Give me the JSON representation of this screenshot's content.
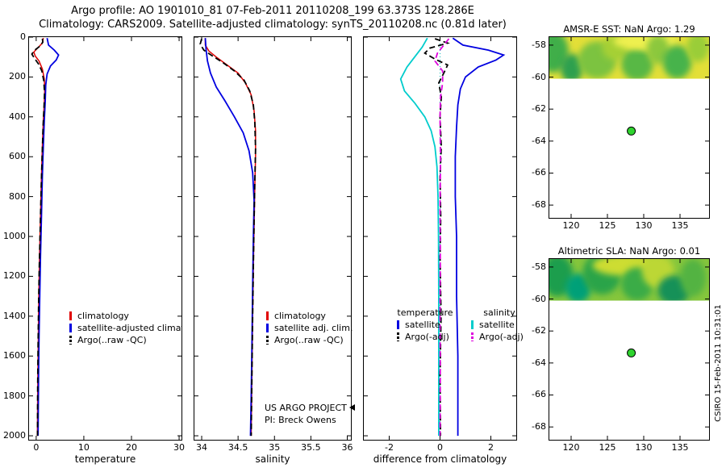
{
  "header": {
    "title_line1": "Argo profile: AO 1901010_81 07-Feb-2011 20110208_199 63.373S 128.286E",
    "title_line2": "Climatology: CARS2009. Satellite-adjusted climatology: synTS_20110208.nc (0.81d later)"
  },
  "annotations": {
    "project_line1": "US ARGO PROJECT",
    "project_line2": "PI: Breck Owens",
    "watermark": "CSIRO 15-Feb-2011 10:31:01"
  },
  "colors": {
    "climatology": "#e00000",
    "satellite_temperature": "#0000e0",
    "argo_raw": "#000000",
    "argo_adjusted_temperature": "#000000",
    "satellite_salinity": "#00cccc",
    "argo_adjusted_salinity": "#dd00dd",
    "marker_green": "#2fd42f"
  },
  "legends": {
    "panel1": [
      "climatology",
      "satellite-adjusted climatology",
      "Argo(..raw -QC)"
    ],
    "panel2": [
      "climatology",
      "satellite adj. clim.",
      "Argo(..raw -QC)"
    ],
    "panel3": {
      "col1_header": "temperature",
      "col2_header": "salinity",
      "col1": [
        "satellite",
        "Argo(-adj)"
      ],
      "col2": [
        "satellite",
        "Argo(-adj)"
      ]
    }
  },
  "chart_data": [
    {
      "type": "line",
      "xlabel": "temperature",
      "xlim": [
        -1.5,
        30.5
      ],
      "ylim": [
        0,
        2020
      ],
      "xticks": [
        0,
        10,
        20,
        30
      ],
      "yticks": [
        0,
        200,
        400,
        600,
        800,
        1000,
        1200,
        1400,
        1600,
        1800,
        2000
      ],
      "ytick_labels": true,
      "series": [
        {
          "name": "climatology",
          "color": "#e00000",
          "width": 1.5,
          "points": [
            [
              1.5,
              5
            ],
            [
              1.3,
              30
            ],
            [
              0.3,
              55
            ],
            [
              -0.5,
              75
            ],
            [
              -0.2,
              95
            ],
            [
              0.6,
              120
            ],
            [
              1.3,
              160
            ],
            [
              1.7,
              210
            ],
            [
              1.8,
              260
            ],
            [
              1.7,
              330
            ],
            [
              1.5,
              420
            ],
            [
              1.3,
              550
            ],
            [
              1.1,
              700
            ],
            [
              0.9,
              900
            ],
            [
              0.7,
              1100
            ],
            [
              0.55,
              1300
            ],
            [
              0.45,
              1500
            ],
            [
              0.35,
              1700
            ],
            [
              0.3,
              1850
            ],
            [
              0.25,
              2000
            ]
          ]
        },
        {
          "name": "satellite-adjusted climatology",
          "color": "#0000e0",
          "width": 1.8,
          "points": [
            [
              2.3,
              5
            ],
            [
              2.6,
              40
            ],
            [
              3.8,
              65
            ],
            [
              4.7,
              90
            ],
            [
              4.2,
              115
            ],
            [
              3.0,
              145
            ],
            [
              2.3,
              185
            ],
            [
              2.0,
              240
            ],
            [
              1.9,
              320
            ],
            [
              1.7,
              420
            ],
            [
              1.5,
              550
            ],
            [
              1.3,
              700
            ],
            [
              1.1,
              900
            ],
            [
              0.9,
              1100
            ],
            [
              0.75,
              1300
            ],
            [
              0.6,
              1500
            ],
            [
              0.5,
              1700
            ],
            [
              0.45,
              1850
            ],
            [
              0.4,
              2000
            ]
          ]
        },
        {
          "name": "Argo(..raw -QC)",
          "color": "#000000",
          "width": 1.8,
          "dash": "7,4",
          "points": [
            [
              1.3,
              8
            ],
            [
              1.4,
              25
            ],
            [
              0.8,
              45
            ],
            [
              -0.3,
              65
            ],
            [
              -0.9,
              85
            ],
            [
              -0.4,
              105
            ],
            [
              0.5,
              135
            ],
            [
              1.2,
              170
            ],
            [
              1.6,
              220
            ],
            [
              1.75,
              280
            ],
            [
              1.65,
              350
            ],
            [
              1.45,
              450
            ],
            [
              1.25,
              600
            ],
            [
              1.05,
              750
            ],
            [
              0.85,
              950
            ],
            [
              0.65,
              1150
            ],
            [
              0.5,
              1350
            ],
            [
              0.4,
              1550
            ],
            [
              0.32,
              1750
            ],
            [
              0.27,
              2000
            ]
          ]
        }
      ]
    },
    {
      "type": "line",
      "xlabel": "salinity",
      "xlim": [
        33.9,
        36.05
      ],
      "ylim": [
        0,
        2020
      ],
      "xticks": [
        34,
        34.5,
        35,
        35.5,
        36
      ],
      "yticks": [
        0,
        200,
        400,
        600,
        800,
        1000,
        1200,
        1400,
        1600,
        1800,
        2000
      ],
      "ytick_labels": false,
      "series": [
        {
          "name": "climatology",
          "color": "#e00000",
          "width": 1.5,
          "points": [
            [
              34.05,
              5
            ],
            [
              34.05,
              40
            ],
            [
              34.1,
              70
            ],
            [
              34.2,
              100
            ],
            [
              34.35,
              140
            ],
            [
              34.5,
              180
            ],
            [
              34.6,
              230
            ],
            [
              34.68,
              290
            ],
            [
              34.72,
              370
            ],
            [
              34.74,
              470
            ],
            [
              34.74,
              600
            ],
            [
              34.73,
              750
            ],
            [
              34.72,
              950
            ],
            [
              34.71,
              1150
            ],
            [
              34.7,
              1400
            ],
            [
              34.69,
              1700
            ],
            [
              34.68,
              2000
            ]
          ]
        },
        {
          "name": "satellite adj. clim.",
          "color": "#0000e0",
          "width": 1.8,
          "points": [
            [
              34.05,
              5
            ],
            [
              34.06,
              60
            ],
            [
              34.08,
              120
            ],
            [
              34.12,
              180
            ],
            [
              34.2,
              250
            ],
            [
              34.32,
              320
            ],
            [
              34.45,
              400
            ],
            [
              34.57,
              480
            ],
            [
              34.65,
              570
            ],
            [
              34.7,
              680
            ],
            [
              34.72,
              820
            ],
            [
              34.71,
              1000
            ],
            [
              34.7,
              1250
            ],
            [
              34.69,
              1550
            ],
            [
              34.68,
              1800
            ],
            [
              34.67,
              2000
            ]
          ]
        },
        {
          "name": "Argo(..raw -QC)",
          "color": "#000000",
          "width": 1.8,
          "dash": "7,4",
          "points": [
            [
              34.0,
              8
            ],
            [
              33.98,
              35
            ],
            [
              34.03,
              65
            ],
            [
              34.15,
              95
            ],
            [
              34.3,
              130
            ],
            [
              34.45,
              170
            ],
            [
              34.58,
              215
            ],
            [
              34.66,
              270
            ],
            [
              34.71,
              340
            ],
            [
              34.73,
              430
            ],
            [
              34.74,
              560
            ],
            [
              34.73,
              720
            ],
            [
              34.72,
              920
            ],
            [
              34.71,
              1150
            ],
            [
              34.7,
              1400
            ],
            [
              34.69,
              1700
            ],
            [
              34.68,
              2000
            ]
          ]
        }
      ]
    },
    {
      "type": "line",
      "xlabel": "difference from climatology",
      "xlim": [
        -3,
        3
      ],
      "ylim": [
        0,
        2020
      ],
      "xticks": [
        -2,
        0,
        2
      ],
      "yticks": [
        0,
        200,
        400,
        600,
        800,
        1000,
        1200,
        1400,
        1600,
        1800,
        2000
      ],
      "ytick_labels": false,
      "series": [
        {
          "name": "zero-line",
          "color": "#00b0b0",
          "width": 1,
          "dash": "1,3",
          "points": [
            [
              0,
              0
            ],
            [
              0,
              2020
            ]
          ]
        },
        {
          "name": "temperature satellite",
          "color": "#0000e0",
          "width": 1.8,
          "points": [
            [
              0.5,
              5
            ],
            [
              0.9,
              40
            ],
            [
              1.9,
              65
            ],
            [
              2.5,
              90
            ],
            [
              2.2,
              115
            ],
            [
              1.5,
              150
            ],
            [
              1.0,
              200
            ],
            [
              0.8,
              260
            ],
            [
              0.7,
              340
            ],
            [
              0.65,
              450
            ],
            [
              0.6,
              600
            ],
            [
              0.6,
              800
            ],
            [
              0.65,
              1000
            ],
            [
              0.65,
              1300
            ],
            [
              0.7,
              1600
            ],
            [
              0.7,
              1800
            ],
            [
              0.7,
              2000
            ]
          ]
        },
        {
          "name": "salinity satellite",
          "color": "#00cccc",
          "width": 1.8,
          "points": [
            [
              -0.5,
              5
            ],
            [
              -0.7,
              50
            ],
            [
              -1.0,
              100
            ],
            [
              -1.3,
              150
            ],
            [
              -1.55,
              210
            ],
            [
              -1.4,
              270
            ],
            [
              -1.0,
              330
            ],
            [
              -0.6,
              400
            ],
            [
              -0.35,
              470
            ],
            [
              -0.2,
              550
            ],
            [
              -0.12,
              650
            ],
            [
              -0.08,
              800
            ],
            [
              -0.06,
              1000
            ],
            [
              -0.05,
              1300
            ],
            [
              -0.05,
              1600
            ],
            [
              -0.05,
              2000
            ]
          ]
        },
        {
          "name": "temperature Argo(-adj)",
          "color": "#000000",
          "width": 1.8,
          "dash": "7,4",
          "points": [
            [
              -0.2,
              8
            ],
            [
              0.3,
              30
            ],
            [
              -0.4,
              55
            ],
            [
              -0.6,
              80
            ],
            [
              -0.2,
              110
            ],
            [
              0.3,
              140
            ],
            [
              0.15,
              180
            ],
            [
              -0.05,
              230
            ],
            [
              0.05,
              300
            ],
            [
              0,
              400
            ],
            [
              0.05,
              550
            ],
            [
              0,
              700
            ],
            [
              0.03,
              900
            ],
            [
              0,
              1100
            ],
            [
              0.04,
              1400
            ],
            [
              0,
              1700
            ],
            [
              0.02,
              2000
            ]
          ]
        },
        {
          "name": "salinity Argo(-adj)",
          "color": "#dd00dd",
          "width": 1.8,
          "dash": "7,4",
          "points": [
            [
              0.35,
              8
            ],
            [
              0.15,
              40
            ],
            [
              -0.1,
              80
            ],
            [
              -0.2,
              120
            ],
            [
              0.1,
              170
            ],
            [
              0.1,
              230
            ],
            [
              0.02,
              300
            ],
            [
              0,
              400
            ],
            [
              0.02,
              600
            ],
            [
              0,
              850
            ],
            [
              0.01,
              1100
            ],
            [
              0,
              1400
            ],
            [
              0.01,
              1700
            ],
            [
              0,
              2000
            ]
          ]
        }
      ]
    },
    {
      "type": "heatmap",
      "title": "AMSR-E SST: NaN Argo: 1.29",
      "xlim": [
        117,
        139
      ],
      "ylim": [
        -57.5,
        -68.8
      ],
      "xticks": [
        120,
        125,
        130,
        135
      ],
      "yticks": [
        -58,
        -60,
        -62,
        -64,
        -66,
        -68
      ],
      "ytick_labels": true,
      "band": {
        "y_from": -57.5,
        "y_to": -60.1,
        "base": "#e3df38",
        "blobs": [
          {
            "x": 0.02,
            "y": 0.35,
            "rx": 0.1,
            "ry": 0.5,
            "c": "#3fae49"
          },
          {
            "x": 0.14,
            "y": 0.75,
            "rx": 0.07,
            "ry": 0.35,
            "c": "#2fa050"
          },
          {
            "x": 0.3,
            "y": 0.55,
            "rx": 0.12,
            "ry": 0.45,
            "c": "#7cc33f"
          },
          {
            "x": 0.41,
            "y": 0.25,
            "rx": 0.08,
            "ry": 0.3,
            "c": "#a5d036"
          },
          {
            "x": 0.55,
            "y": 0.65,
            "rx": 0.1,
            "ry": 0.4,
            "c": "#59b844"
          },
          {
            "x": 0.6,
            "y": 0.1,
            "rx": 0.2,
            "ry": 0.2,
            "c": "#eef04f"
          },
          {
            "x": 0.68,
            "y": 0.3,
            "rx": 0.07,
            "ry": 0.35,
            "c": "#8cc83c"
          },
          {
            "x": 0.8,
            "y": 0.6,
            "rx": 0.09,
            "ry": 0.4,
            "c": "#46b34c"
          },
          {
            "x": 0.93,
            "y": 0.25,
            "rx": 0.07,
            "ry": 0.35,
            "c": "#9acd38"
          }
        ]
      },
      "marker": {
        "x": 128.286,
        "y": -63.373,
        "color": "#2fd42f"
      }
    },
    {
      "type": "heatmap",
      "title": "Altimetric SLA: NaN Argo: 0.01",
      "xlim": [
        117,
        139
      ],
      "ylim": [
        -57.5,
        -68.8
      ],
      "xticks": [
        120,
        125,
        130,
        135
      ],
      "yticks": [
        -58,
        -60,
        -62,
        -64,
        -66,
        -68
      ],
      "ytick_labels": true,
      "band": {
        "y_from": -57.5,
        "y_to": -60.1,
        "base": "#86c63c",
        "blobs": [
          {
            "x": 0.05,
            "y": 0.4,
            "rx": 0.1,
            "ry": 0.5,
            "c": "#1f9e4e"
          },
          {
            "x": 0.18,
            "y": 0.7,
            "rx": 0.08,
            "ry": 0.35,
            "c": "#00a078"
          },
          {
            "x": 0.33,
            "y": 0.35,
            "rx": 0.12,
            "ry": 0.5,
            "c": "#2aa44a"
          },
          {
            "x": 0.47,
            "y": 0.15,
            "rx": 0.2,
            "ry": 0.25,
            "c": "#cddd30"
          },
          {
            "x": 0.55,
            "y": 0.6,
            "rx": 0.1,
            "ry": 0.4,
            "c": "#3bac47"
          },
          {
            "x": 0.68,
            "y": 0.3,
            "rx": 0.1,
            "ry": 0.4,
            "c": "#bcd734"
          },
          {
            "x": 0.78,
            "y": 0.75,
            "rx": 0.1,
            "ry": 0.35,
            "c": "#149158"
          },
          {
            "x": 0.9,
            "y": 0.45,
            "rx": 0.08,
            "ry": 0.45,
            "c": "#52b342"
          }
        ]
      },
      "marker": {
        "x": 128.286,
        "y": -63.373,
        "color": "#2fd42f"
      }
    }
  ]
}
